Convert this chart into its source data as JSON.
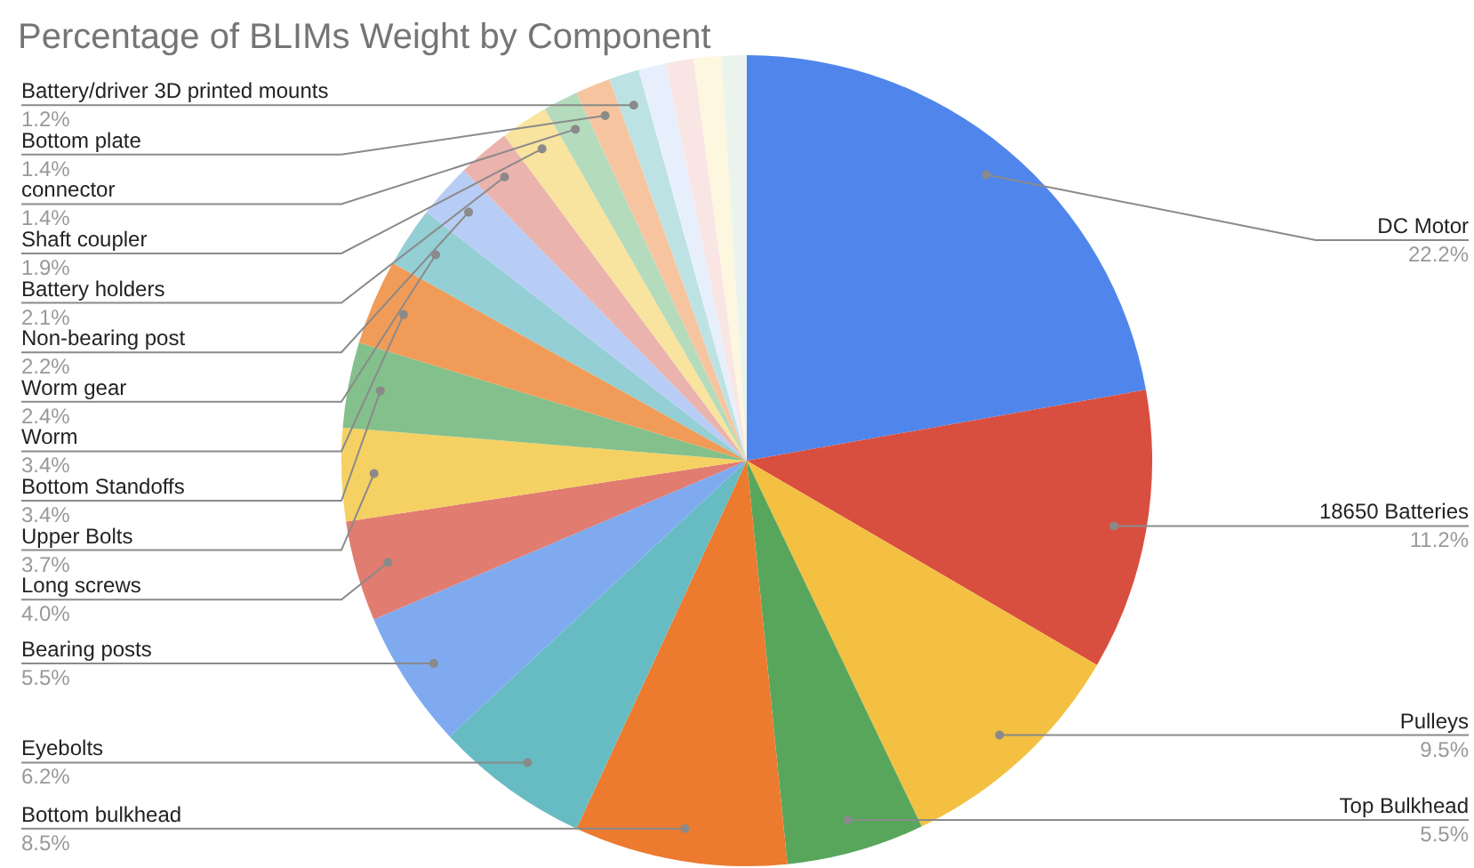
{
  "chart_data": {
    "type": "pie",
    "title": "Percentage of BLIMs Weight by Component",
    "categories": [
      "DC Motor",
      "18650 Batteries",
      "Pulleys",
      "Top Bulkhead",
      "Bottom bulkhead",
      "Eyebolts",
      "Bearing posts",
      "Long screws",
      "Upper Bolts",
      "Bottom Standoffs",
      "Worm",
      "Worm gear",
      "Non-bearing post",
      "Battery holders",
      "Shaft coupler",
      "connector",
      "Bottom plate",
      "Battery/driver 3D printed mounts",
      null,
      null,
      null,
      null
    ],
    "values": [
      22.2,
      11.2,
      9.5,
      5.5,
      8.5,
      6.2,
      5.5,
      4.0,
      3.7,
      3.4,
      3.4,
      2.4,
      2.2,
      2.1,
      1.9,
      1.4,
      1.4,
      1.2,
      1.1,
      1.1,
      1.1,
      1.0
    ],
    "value_labels": [
      "22.2%",
      "11.2%",
      "9.5%",
      "5.5%",
      "8.5%",
      "6.2%",
      "5.5%",
      "4.0%",
      "3.7%",
      "3.4%",
      "3.4%",
      "2.4%",
      "2.2%",
      "2.1%",
      "1.9%",
      "1.4%",
      "1.4%",
      "1.2%",
      null,
      null,
      null,
      null
    ],
    "colors": [
      "#5086ec",
      "#d94f3f",
      "#f3c042",
      "#58a65c",
      "#ec7a2f",
      "#67bcc3",
      "#7faaf0",
      "#e17c70",
      "#f5d163",
      "#83c08c",
      "#f09c58",
      "#93cfd4",
      "#b8cdf5",
      "#ebb3ad",
      "#f8e39f",
      "#b5dbbd",
      "#f6c59f",
      "#bde2e4",
      "#e8effc",
      "#f9e5e3",
      "#fdf7e0",
      "#eaf4ec"
    ]
  }
}
